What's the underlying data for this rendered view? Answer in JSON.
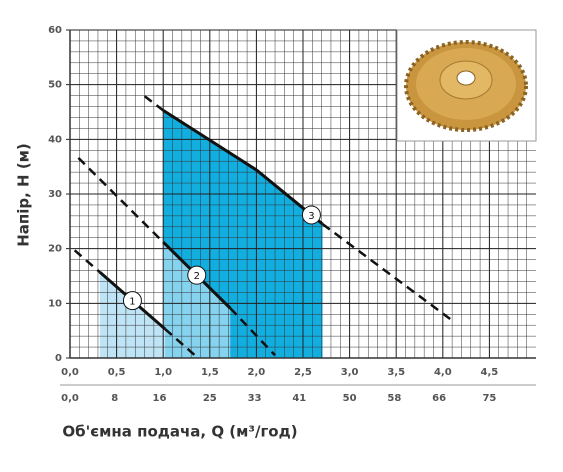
{
  "chart_data": {
    "type": "line",
    "xlabel": "Об'ємна подача, Q (м³/год)",
    "ylabel": "Напір, H (м)",
    "xlim": [
      0,
      5
    ],
    "ylim": [
      0,
      60
    ],
    "xticks": [
      {
        "value": 0,
        "label": "0,0"
      },
      {
        "value": 0.5,
        "label": "0,5"
      },
      {
        "value": 1,
        "label": "1,0"
      },
      {
        "value": 1.5,
        "label": "1,5"
      },
      {
        "value": 2,
        "label": "2,0"
      },
      {
        "value": 2.5,
        "label": "2,5"
      },
      {
        "value": 3,
        "label": "3,0"
      },
      {
        "value": 3.5,
        "label": "3,5"
      },
      {
        "value": 4,
        "label": "4,0"
      },
      {
        "value": 4.5,
        "label": "4,5"
      }
    ],
    "yticks": [
      0,
      10,
      20,
      30,
      40,
      50,
      60
    ],
    "x2lim": [
      0,
      83.33
    ],
    "x2ticks": [
      {
        "value": 0,
        "label": "0,0"
      },
      8,
      16,
      25,
      33,
      41,
      50,
      58,
      66,
      75
    ],
    "grid": true,
    "series": [
      {
        "name": "1",
        "color": "#bfe4f6",
        "x": [
          0.05,
          0.32,
          1.02,
          1.34
        ],
        "values": [
          19.7,
          15.7,
          5.3,
          0.5
        ],
        "line_styles": [
          "dashed",
          "solid",
          "dashed"
        ]
      },
      {
        "name": "2",
        "color": "#86d3f0",
        "x": [
          0.09,
          1.0,
          1.72,
          2.2
        ],
        "values": [
          36.6,
          21.2,
          9.1,
          0.5
        ],
        "line_styles": [
          "dashed",
          "solid",
          "dashed"
        ]
      },
      {
        "name": "3",
        "color": "#12aee0",
        "x": [
          0.8,
          1.0,
          2.0,
          2.71,
          4.09
        ],
        "values": [
          47.9,
          45.3,
          34.4,
          24.5,
          7
        ],
        "line_styles": [
          "dashed",
          "solid",
          "solid",
          "dashed"
        ]
      }
    ]
  }
}
